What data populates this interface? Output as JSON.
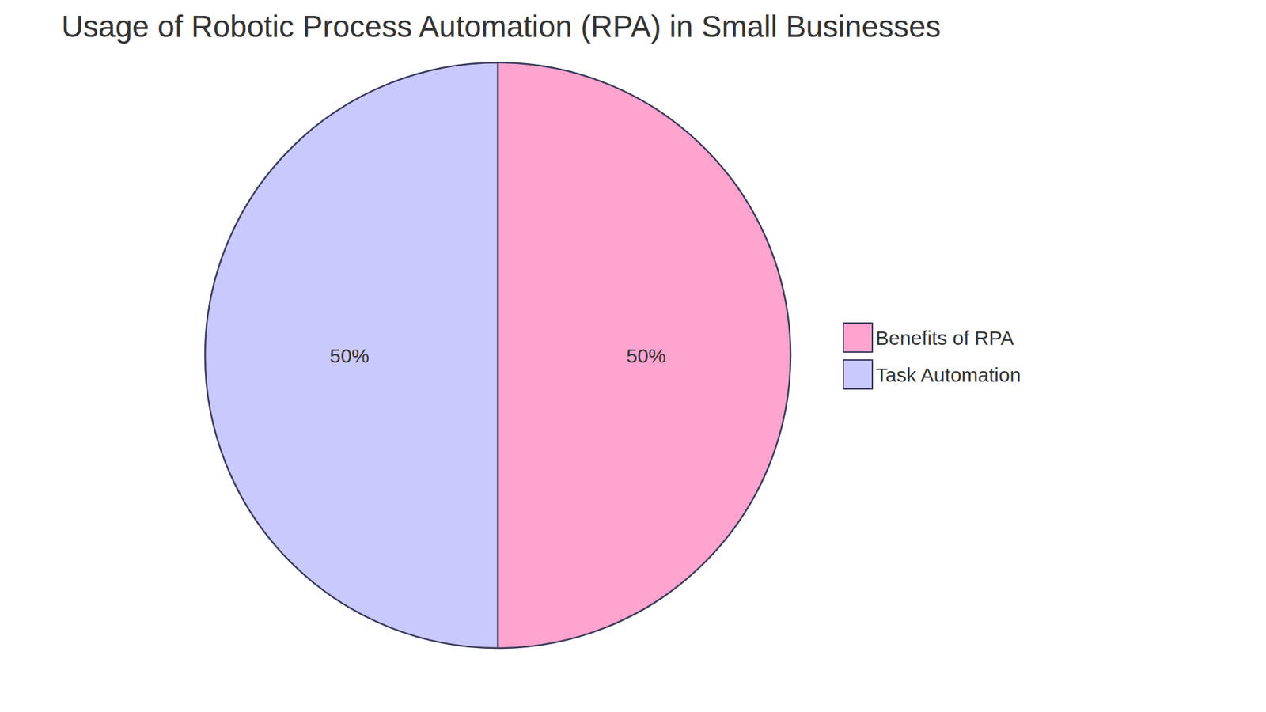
{
  "chart_data": {
    "type": "pie",
    "title": "Usage of Robotic Process Automation (RPA) in Small Businesses",
    "categories": [
      "Benefits of RPA",
      "Task Automation"
    ],
    "values": [
      50,
      50
    ],
    "value_labels": [
      "50%",
      "50%"
    ],
    "colors": [
      "#ffa3cf",
      "#c9c9fe"
    ],
    "data_labels": true,
    "legend": "right"
  }
}
